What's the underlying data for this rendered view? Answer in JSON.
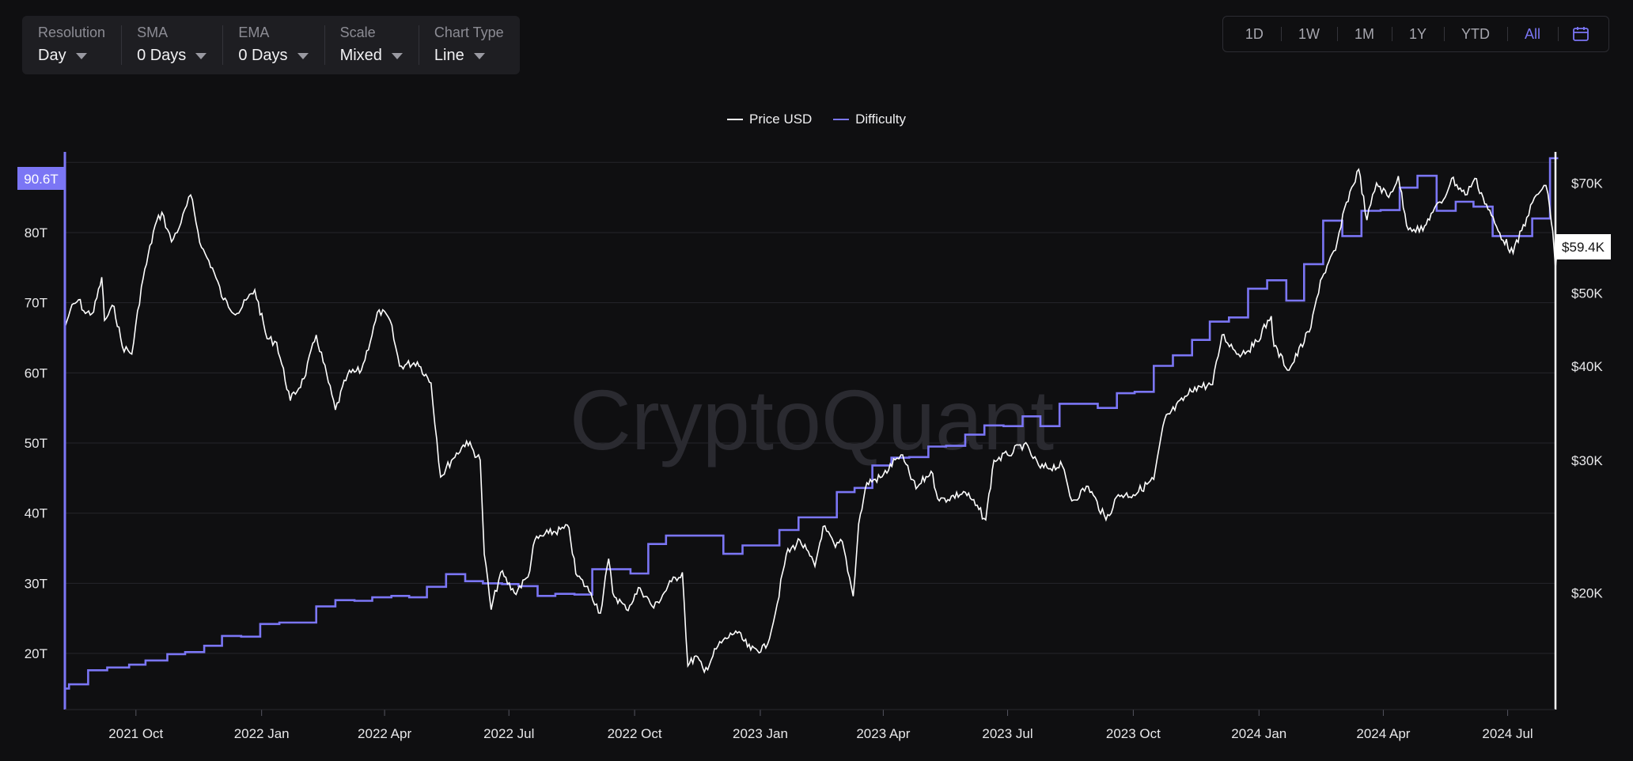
{
  "controls": [
    {
      "label": "Resolution",
      "value": "Day"
    },
    {
      "label": "SMA",
      "value": "0 Days"
    },
    {
      "label": "EMA",
      "value": "0 Days"
    },
    {
      "label": "Scale",
      "value": "Mixed"
    },
    {
      "label": "Chart Type",
      "value": "Line"
    }
  ],
  "ranges": [
    "1D",
    "1W",
    "1M",
    "1Y",
    "YTD",
    "All"
  ],
  "active_range": "All",
  "watermark": "CryptoQuant",
  "colors": {
    "price": "#ffffff",
    "difficulty": "#7b76f5",
    "active": "#7b76f5"
  },
  "icons": {
    "calendar": "calendar-icon",
    "dropdown": "chevron-down-icon"
  },
  "chart_data": {
    "type": "line",
    "x_tick_labels": [
      "2021 Oct",
      "2022 Jan",
      "2022 Apr",
      "2022 Jul",
      "2022 Oct",
      "2023 Jan",
      "2023 Apr",
      "2023 Jul",
      "2023 Oct",
      "2024 Jan",
      "2024 Apr",
      "2024 Jul"
    ],
    "x_range": [
      "2021-08-10",
      "2024-08-05"
    ],
    "y_left": {
      "ticks": [
        "20T",
        "30T",
        "40T",
        "50T",
        "60T",
        "70T",
        "80T"
      ],
      "range": [
        12,
        91.5
      ],
      "current_label": "90.6T",
      "current_value": 90.6
    },
    "y_right": {
      "scale": "log",
      "ticks": [
        "$20K",
        "$30K",
        "$40K",
        "$50K",
        "$70K"
      ],
      "tick_values": [
        20000,
        30000,
        40000,
        50000,
        70000
      ],
      "range": [
        14000,
        77000
      ],
      "current_label": "$59.4K",
      "current_value": 59400
    },
    "grid": true,
    "legend_position": "top-center",
    "series": [
      {
        "name": "Price USD",
        "axis": "right",
        "points": [
          [
            "2021-08-10",
            45000
          ],
          [
            "2021-08-14",
            47500
          ],
          [
            "2021-08-20",
            49000
          ],
          [
            "2021-08-25",
            47000
          ],
          [
            "2021-08-31",
            47200
          ],
          [
            "2021-09-06",
            52500
          ],
          [
            "2021-09-08",
            46000
          ],
          [
            "2021-09-15",
            48000
          ],
          [
            "2021-09-21",
            42500
          ],
          [
            "2021-09-28",
            41500
          ],
          [
            "2021-10-05",
            51000
          ],
          [
            "2021-10-15",
            61500
          ],
          [
            "2021-10-20",
            64000
          ],
          [
            "2021-10-27",
            58500
          ],
          [
            "2021-11-03",
            62000
          ],
          [
            "2021-11-10",
            67500
          ],
          [
            "2021-11-18",
            57500
          ],
          [
            "2021-11-26",
            54000
          ],
          [
            "2021-12-04",
            49000
          ],
          [
            "2021-12-14",
            47000
          ],
          [
            "2021-12-27",
            50500
          ],
          [
            "2022-01-05",
            43500
          ],
          [
            "2022-01-12",
            43000
          ],
          [
            "2022-01-22",
            36000
          ],
          [
            "2022-02-01",
            38500
          ],
          [
            "2022-02-10",
            44000
          ],
          [
            "2022-02-24",
            35000
          ],
          [
            "2022-03-05",
            39000
          ],
          [
            "2022-03-15",
            39500
          ],
          [
            "2022-03-28",
            47500
          ],
          [
            "2022-04-05",
            46000
          ],
          [
            "2022-04-12",
            40000
          ],
          [
            "2022-04-25",
            40500
          ],
          [
            "2022-05-05",
            38000
          ],
          [
            "2022-05-12",
            28500
          ],
          [
            "2022-05-20",
            30000
          ],
          [
            "2022-05-31",
            31800
          ],
          [
            "2022-06-10",
            30000
          ],
          [
            "2022-06-13",
            22500
          ],
          [
            "2022-06-18",
            19000
          ],
          [
            "2022-06-25",
            21300
          ],
          [
            "2022-07-05",
            20000
          ],
          [
            "2022-07-15",
            21000
          ],
          [
            "2022-07-20",
            23500
          ],
          [
            "2022-07-30",
            24000
          ],
          [
            "2022-08-14",
            24400
          ],
          [
            "2022-08-19",
            21200
          ],
          [
            "2022-08-30",
            20000
          ],
          [
            "2022-09-06",
            18800
          ],
          [
            "2022-09-12",
            22200
          ],
          [
            "2022-09-15",
            20000
          ],
          [
            "2022-09-25",
            19000
          ],
          [
            "2022-10-05",
            20300
          ],
          [
            "2022-10-15",
            19100
          ],
          [
            "2022-10-28",
            20700
          ],
          [
            "2022-11-05",
            21300
          ],
          [
            "2022-11-09",
            16000
          ],
          [
            "2022-11-15",
            16500
          ],
          [
            "2022-11-21",
            15700
          ],
          [
            "2022-12-01",
            17000
          ],
          [
            "2022-12-14",
            17800
          ],
          [
            "2022-12-25",
            16800
          ],
          [
            "2023-01-05",
            16900
          ],
          [
            "2023-01-12",
            18800
          ],
          [
            "2023-01-20",
            22500
          ],
          [
            "2023-01-30",
            23500
          ],
          [
            "2023-02-10",
            21700
          ],
          [
            "2023-02-16",
            24500
          ],
          [
            "2023-02-25",
            23000
          ],
          [
            "2023-03-02",
            23400
          ],
          [
            "2023-03-10",
            19800
          ],
          [
            "2023-03-14",
            24700
          ],
          [
            "2023-03-20",
            28000
          ],
          [
            "2023-03-31",
            28500
          ],
          [
            "2023-04-11",
            30200
          ],
          [
            "2023-04-14",
            30500
          ],
          [
            "2023-04-25",
            27500
          ],
          [
            "2023-05-06",
            29000
          ],
          [
            "2023-05-12",
            26500
          ],
          [
            "2023-05-31",
            27200
          ],
          [
            "2023-06-10",
            25800
          ],
          [
            "2023-06-15",
            25000
          ],
          [
            "2023-06-21",
            30000
          ],
          [
            "2023-07-01",
            30500
          ],
          [
            "2023-07-13",
            31500
          ],
          [
            "2023-07-25",
            29300
          ],
          [
            "2023-08-10",
            29500
          ],
          [
            "2023-08-17",
            26500
          ],
          [
            "2023-08-29",
            27700
          ],
          [
            "2023-09-11",
            25000
          ],
          [
            "2023-09-20",
            27000
          ],
          [
            "2023-10-01",
            27000
          ],
          [
            "2023-10-16",
            28300
          ],
          [
            "2023-10-24",
            34000
          ],
          [
            "2023-11-09",
            36500
          ],
          [
            "2023-11-15",
            37500
          ],
          [
            "2023-11-28",
            37800
          ],
          [
            "2023-12-05",
            44000
          ],
          [
            "2023-12-17",
            41500
          ],
          [
            "2023-12-28",
            42500
          ],
          [
            "2024-01-10",
            46600
          ],
          [
            "2024-01-12",
            42500
          ],
          [
            "2024-01-23",
            39500
          ],
          [
            "2024-02-08",
            45000
          ],
          [
            "2024-02-15",
            52000
          ],
          [
            "2024-02-26",
            57000
          ],
          [
            "2024-03-05",
            66000
          ],
          [
            "2024-03-14",
            73000
          ],
          [
            "2024-03-20",
            62500
          ],
          [
            "2024-03-27",
            70000
          ],
          [
            "2024-04-05",
            67000
          ],
          [
            "2024-04-12",
            71500
          ],
          [
            "2024-04-18",
            61500
          ],
          [
            "2024-04-30",
            60500
          ],
          [
            "2024-05-06",
            63800
          ],
          [
            "2024-05-15",
            66500
          ],
          [
            "2024-05-21",
            71000
          ],
          [
            "2024-05-31",
            67500
          ],
          [
            "2024-06-07",
            71000
          ],
          [
            "2024-06-13",
            67000
          ],
          [
            "2024-06-24",
            60500
          ],
          [
            "2024-07-05",
            56500
          ],
          [
            "2024-07-15",
            63000
          ],
          [
            "2024-07-22",
            67500
          ],
          [
            "2024-07-29",
            69500
          ],
          [
            "2024-08-01",
            64500
          ],
          [
            "2024-08-03",
            60500
          ],
          [
            "2024-08-05",
            54000
          ],
          [
            "2024-08-06",
            56500
          ],
          [
            "2024-08-07",
            59400
          ]
        ]
      },
      {
        "name": "Difficulty",
        "axis": "left",
        "steps": [
          [
            "2021-08-10",
            15.0
          ],
          [
            "2021-08-13",
            15.6
          ],
          [
            "2021-08-27",
            17.6
          ],
          [
            "2021-09-10",
            18.0
          ],
          [
            "2021-09-26",
            18.4
          ],
          [
            "2021-10-08",
            19.0
          ],
          [
            "2021-10-24",
            19.9
          ],
          [
            "2021-11-06",
            20.2
          ],
          [
            "2021-11-20",
            21.1
          ],
          [
            "2021-12-03",
            22.5
          ],
          [
            "2021-12-17",
            22.4
          ],
          [
            "2021-12-31",
            24.2
          ],
          [
            "2022-01-14",
            24.4
          ],
          [
            "2022-01-27",
            24.4
          ],
          [
            "2022-02-10",
            26.7
          ],
          [
            "2022-02-24",
            27.6
          ],
          [
            "2022-03-10",
            27.5
          ],
          [
            "2022-03-23",
            28.0
          ],
          [
            "2022-04-06",
            28.2
          ],
          [
            "2022-04-19",
            28.0
          ],
          [
            "2022-05-02",
            29.5
          ],
          [
            "2022-05-16",
            31.3
          ],
          [
            "2022-05-30",
            30.3
          ],
          [
            "2022-06-12",
            30.0
          ],
          [
            "2022-06-26",
            29.9
          ],
          [
            "2022-07-08",
            29.6
          ],
          [
            "2022-07-22",
            28.2
          ],
          [
            "2022-08-04",
            28.5
          ],
          [
            "2022-08-18",
            28.4
          ],
          [
            "2022-08-31",
            32.0
          ],
          [
            "2022-09-13",
            32.0
          ],
          [
            "2022-09-28",
            31.4
          ],
          [
            "2022-10-11",
            35.6
          ],
          [
            "2022-10-24",
            36.8
          ],
          [
            "2022-11-07",
            36.8
          ],
          [
            "2022-11-21",
            36.8
          ],
          [
            "2022-12-05",
            34.2
          ],
          [
            "2022-12-19",
            35.4
          ],
          [
            "2023-01-02",
            35.4
          ],
          [
            "2023-01-15",
            37.6
          ],
          [
            "2023-01-29",
            39.4
          ],
          [
            "2023-02-12",
            39.4
          ],
          [
            "2023-02-26",
            43.0
          ],
          [
            "2023-03-11",
            43.6
          ],
          [
            "2023-03-24",
            46.8
          ],
          [
            "2023-04-07",
            47.9
          ],
          [
            "2023-04-20",
            48.0
          ],
          [
            "2023-05-04",
            49.5
          ],
          [
            "2023-05-17",
            49.6
          ],
          [
            "2023-05-31",
            51.2
          ],
          [
            "2023-06-14",
            52.5
          ],
          [
            "2023-06-28",
            52.4
          ],
          [
            "2023-07-12",
            53.8
          ],
          [
            "2023-07-25",
            52.4
          ],
          [
            "2023-08-08",
            55.6
          ],
          [
            "2023-08-22",
            55.6
          ],
          [
            "2023-09-05",
            55.0
          ],
          [
            "2023-09-19",
            57.1
          ],
          [
            "2023-10-02",
            57.3
          ],
          [
            "2023-10-16",
            61.0
          ],
          [
            "2023-10-30",
            62.5
          ],
          [
            "2023-11-13",
            64.7
          ],
          [
            "2023-11-26",
            67.3
          ],
          [
            "2023-12-10",
            67.9
          ],
          [
            "2023-12-24",
            72.0
          ],
          [
            "2024-01-07",
            73.2
          ],
          [
            "2024-01-21",
            70.3
          ],
          [
            "2024-02-03",
            75.5
          ],
          [
            "2024-02-17",
            81.7
          ],
          [
            "2024-03-02",
            79.5
          ],
          [
            "2024-03-16",
            83.1
          ],
          [
            "2024-03-30",
            83.2
          ],
          [
            "2024-04-13",
            86.4
          ],
          [
            "2024-04-26",
            88.1
          ],
          [
            "2024-05-10",
            83.1
          ],
          [
            "2024-05-24",
            84.4
          ],
          [
            "2024-06-06",
            83.7
          ],
          [
            "2024-06-20",
            79.5
          ],
          [
            "2024-07-05",
            79.5
          ],
          [
            "2024-07-19",
            82.0
          ],
          [
            "2024-08-01",
            90.6
          ],
          [
            "2024-08-07",
            90.6
          ]
        ]
      }
    ]
  }
}
